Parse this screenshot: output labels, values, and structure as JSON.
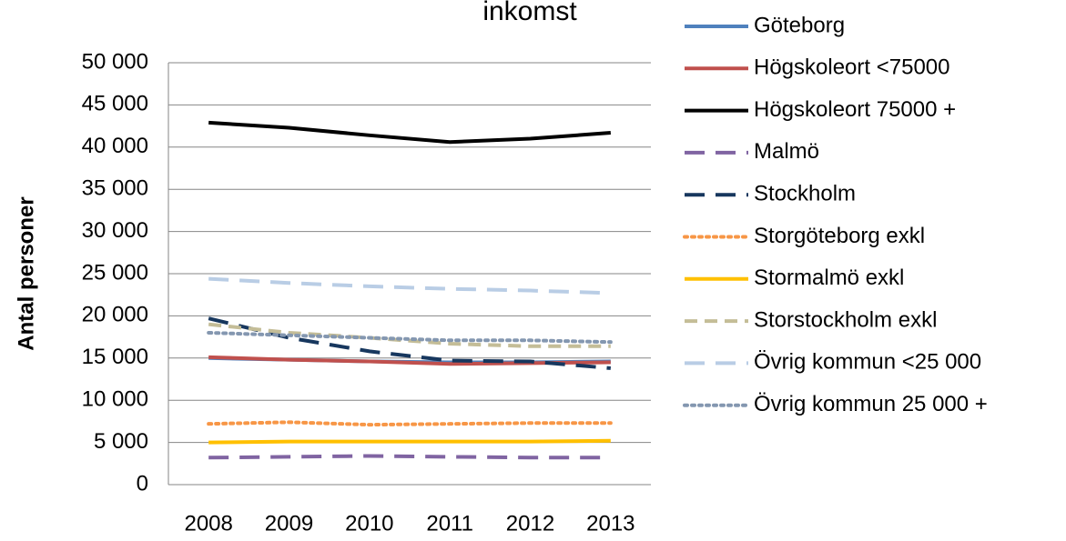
{
  "chart_data": {
    "type": "line",
    "title": "inkomst",
    "y_label": "Antal personer",
    "categories": [
      "2008",
      "2009",
      "2010",
      "2011",
      "2012",
      "2013"
    ],
    "ylim": [
      0,
      50000
    ],
    "yticks": [
      0,
      {
        "value": 5000,
        "label": "5 000"
      },
      {
        "value": 10000,
        "label": "10 000"
      },
      {
        "value": 15000,
        "label": "15 000"
      },
      {
        "value": 20000,
        "label": "20 000"
      },
      {
        "value": 25000,
        "label": "25 000"
      },
      {
        "value": 30000,
        "label": "30 000"
      },
      {
        "value": 35000,
        "label": "35 000"
      },
      {
        "value": 40000,
        "label": "40 000"
      },
      {
        "value": 45000,
        "label": "45 000"
      },
      {
        "value": 50000,
        "label": "50 000"
      }
    ],
    "grid": true,
    "legend": "right",
    "series": [
      {
        "name": "Göteborg",
        "color": "#4f81bd",
        "dash": "solid",
        "values": [
          15000,
          14800,
          14600,
          14500,
          14500,
          14600
        ]
      },
      {
        "name": "Högskoleort <75000",
        "color": "#c0504d",
        "dash": "solid",
        "values": [
          15100,
          14800,
          14600,
          14300,
          14400,
          14500
        ]
      },
      {
        "name": "Högskoleort 75000 +",
        "color": "#000000",
        "dash": "solid",
        "values": [
          42900,
          42300,
          41400,
          40600,
          41000,
          41700
        ]
      },
      {
        "name": "Malmö",
        "color": "#8064a2",
        "dash": "longdash",
        "values": [
          3200,
          3300,
          3400,
          3300,
          3200,
          3200
        ]
      },
      {
        "name": "Stockholm",
        "color": "#17375e",
        "dash": "longdash",
        "values": [
          19700,
          17400,
          15800,
          14700,
          14600,
          13800
        ]
      },
      {
        "name": "Storgöteborg exkl",
        "color": "#f79646",
        "dash": "dot",
        "values": [
          7200,
          7400,
          7100,
          7200,
          7300,
          7300
        ]
      },
      {
        "name": "Stormalmö exkl",
        "color": "#ffc000",
        "dash": "solid",
        "values": [
          5000,
          5100,
          5100,
          5100,
          5100,
          5200
        ]
      },
      {
        "name": "Storstockholm exkl",
        "color": "#c4bd97",
        "dash": "dash",
        "values": [
          19000,
          18000,
          17400,
          16700,
          16400,
          16400
        ]
      },
      {
        "name": "Övrig kommun <25 000",
        "color": "#b9cde5",
        "dash": "longdash",
        "values": [
          24400,
          23900,
          23500,
          23200,
          23000,
          22700
        ]
      },
      {
        "name": "Övrig kommun 25 000 +",
        "color": "#8497b0",
        "dash": "dot",
        "values": [
          18000,
          17700,
          17400,
          17100,
          17100,
          16900
        ]
      }
    ]
  }
}
